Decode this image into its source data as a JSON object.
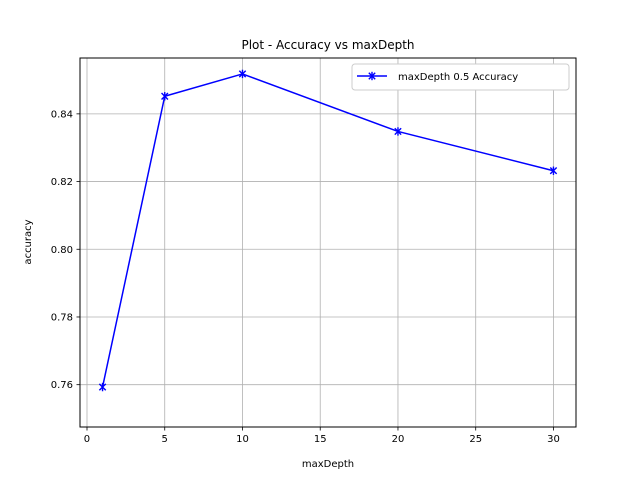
{
  "chart_data": {
    "type": "line",
    "title": "Plot - Accuracy vs maxDepth",
    "xlabel": "maxDepth",
    "ylabel": "accuracy",
    "xlim": [
      -0.45,
      31.45
    ],
    "ylim": [
      0.7475,
      0.8565
    ],
    "xticks": [
      0,
      5,
      10,
      15,
      20,
      25,
      30
    ],
    "xtick_labels": [
      "0",
      "5",
      "10",
      "15",
      "20",
      "25",
      "30"
    ],
    "yticks": [
      0.76,
      0.78,
      0.8,
      0.82,
      0.84
    ],
    "ytick_labels": [
      "0.76",
      "0.78",
      "0.80",
      "0.82",
      "0.84"
    ],
    "grid": true,
    "legend_position": "top-right",
    "series": [
      {
        "name": "maxDepth 0.5 Accuracy",
        "color": "#0000ff",
        "marker": "x-star",
        "x": [
          1,
          5,
          10,
          20,
          30
        ],
        "y": [
          0.7593,
          0.8452,
          0.8518,
          0.8348,
          0.8232
        ]
      }
    ]
  }
}
